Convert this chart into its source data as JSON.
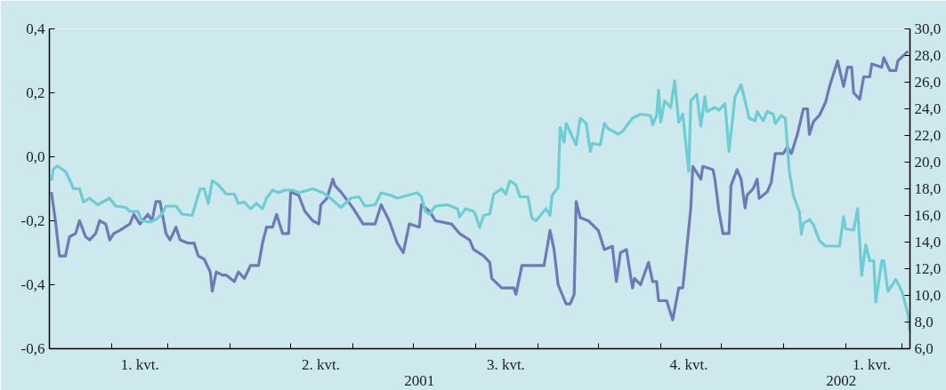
{
  "chart_data": {
    "type": "line",
    "xlim": [
      "2001-01-01",
      "2002-03-05"
    ],
    "xticks": [
      {
        "value": "2001-02-01",
        "label": null
      },
      {
        "value": "2001-03-01",
        "label": null
      },
      {
        "value": "2001-04-01",
        "label": null
      },
      {
        "value": "2001-05-01",
        "label": null
      },
      {
        "value": "2001-06-01",
        "label": null
      },
      {
        "value": "2001-07-01",
        "label": null
      },
      {
        "value": "2001-08-01",
        "label": null
      },
      {
        "value": "2001-09-01",
        "label": null
      },
      {
        "value": "2001-10-01",
        "label": null
      },
      {
        "value": "2001-11-01",
        "label": null
      },
      {
        "value": "2001-12-01",
        "label": null
      },
      {
        "value": "2002-01-01",
        "label": null
      },
      {
        "value": "2002-02-01",
        "label": null
      },
      {
        "value": "2002-03-01",
        "label": null
      },
      {
        "value": "2001-02-15",
        "label": "1. kvt."
      },
      {
        "value": "2001-05-16",
        "label": "2. kvt."
      },
      {
        "value": "2001-08-16",
        "label": "3. kvt."
      },
      {
        "value": "2001-11-15",
        "label": "4. kvt."
      },
      {
        "value": "2002-02-14",
        "label": "1. kvt."
      }
    ],
    "ylim": [
      -0.6,
      0.4
    ],
    "yticks": [
      {
        "value": -0.6,
        "label": "-0,6"
      },
      {
        "value": -0.4,
        "label": "-0,4"
      },
      {
        "value": -0.2,
        "label": "-0,2"
      },
      {
        "value": 0.0,
        "label": "0,0"
      },
      {
        "value": 0.2,
        "label": "0,2"
      },
      {
        "value": 0.4,
        "label": "0,4"
      }
    ],
    "y2lim": [
      6,
      30
    ],
    "y2ticks": [
      {
        "value": 6,
        "label": "6,0"
      },
      {
        "value": 8,
        "label": "8,0"
      },
      {
        "value": 10,
        "label": "10,0"
      },
      {
        "value": 12,
        "label": "12,0"
      },
      {
        "value": 14,
        "label": "14,0"
      },
      {
        "value": 16,
        "label": "16,0"
      },
      {
        "value": 18,
        "label": "18,0"
      },
      {
        "value": 20,
        "label": "20,0"
      },
      {
        "value": 22,
        "label": "22,0"
      },
      {
        "value": 24,
        "label": "24,0"
      },
      {
        "value": 26,
        "label": "26,0"
      },
      {
        "value": 28,
        "label": "28,0"
      },
      {
        "value": 30,
        "label": "30,0"
      }
    ],
    "annotations": [
      "2001",
      "2002"
    ],
    "series": [
      {
        "color": "#6f79b9",
        "x": [
          "2001-01-02",
          "2001-01-04",
          "2001-01-06",
          "2001-01-09",
          "2001-01-11",
          "2001-01-14",
          "2001-01-16",
          "2001-01-19",
          "2001-01-21",
          "2001-01-24",
          "2001-01-26",
          "2001-01-29",
          "2001-01-31",
          "2001-02-02",
          "2001-02-05",
          "2001-02-10",
          "2001-02-12",
          "2001-02-15",
          "2001-02-19",
          "2001-02-21",
          "2001-02-23",
          "2001-02-25",
          "2001-02-28",
          "2001-03-02",
          "2001-03-05",
          "2001-03-07",
          "2001-03-11",
          "2001-03-14",
          "2001-03-16",
          "2001-03-19",
          "2001-03-22",
          "2001-03-23",
          "2001-03-25",
          "2001-03-28",
          "2001-03-30",
          "2001-04-03",
          "2001-04-05",
          "2001-04-08",
          "2001-04-11",
          "2001-04-15",
          "2001-04-17",
          "2001-04-19",
          "2001-04-22",
          "2001-04-24",
          "2001-04-27",
          "2001-04-30",
          "2001-05-01",
          "2001-05-05",
          "2001-05-08",
          "2001-05-12",
          "2001-05-15",
          "2001-05-16",
          "2001-05-19",
          "2001-05-22",
          "2001-05-23",
          "2001-05-26",
          "2001-06-01",
          "2001-06-06",
          "2001-06-12",
          "2001-06-15",
          "2001-06-19",
          "2001-06-23",
          "2001-06-26",
          "2001-06-29",
          "2001-07-04",
          "2001-07-05",
          "2001-07-09",
          "2001-07-12",
          "2001-07-20",
          "2001-07-24",
          "2001-07-29",
          "2001-07-31",
          "2001-08-05",
          "2001-08-08",
          "2001-08-09",
          "2001-08-14",
          "2001-08-20",
          "2001-08-21",
          "2001-08-24",
          "2001-08-29",
          "2001-09-04",
          "2001-09-07",
          "2001-09-09",
          "2001-09-11",
          "2001-09-15",
          "2001-09-17",
          "2001-09-19",
          "2001-09-20",
          "2001-09-22",
          "2001-09-26",
          "2001-10-01",
          "2001-10-04",
          "2001-10-08",
          "2001-10-10",
          "2001-10-12",
          "2001-10-15",
          "2001-10-18",
          "2001-10-19",
          "2001-10-22",
          "2001-10-26",
          "2001-10-28",
          "2001-10-30",
          "2001-10-31",
          "2001-11-04",
          "2001-11-07",
          "2001-11-10",
          "2001-11-12",
          "2001-11-13",
          "2001-11-16",
          "2001-11-17",
          "2001-11-21",
          "2001-11-22",
          "2001-11-27",
          "2001-11-28",
          "2001-11-30",
          "2001-12-02",
          "2001-12-05",
          "2001-12-06",
          "2001-12-09",
          "2001-12-11",
          "2001-12-13",
          "2001-12-14",
          "2001-12-17",
          "2001-12-19",
          "2001-12-20",
          "2001-12-24",
          "2001-12-26",
          "2001-12-28",
          "2002-01-01",
          "2002-01-03",
          "2002-01-05",
          "2002-01-08",
          "2002-01-11",
          "2002-01-13",
          "2002-01-14",
          "2002-01-16",
          "2002-01-19",
          "2002-01-22",
          "2002-01-24",
          "2002-01-26",
          "2002-01-28",
          "2002-01-31",
          "2002-02-02",
          "2002-02-04",
          "2002-02-05",
          "2002-02-08",
          "2002-02-10",
          "2002-02-13",
          "2002-02-14",
          "2002-02-19",
          "2002-02-20",
          "2002-02-23",
          "2002-02-26",
          "2002-02-27",
          "2002-03-04"
        ],
        "values": [
          -0.11,
          -0.2,
          -0.31,
          -0.31,
          -0.25,
          -0.24,
          -0.2,
          -0.25,
          -0.26,
          -0.24,
          -0.2,
          -0.21,
          -0.26,
          -0.24,
          -0.23,
          -0.21,
          -0.18,
          -0.21,
          -0.18,
          -0.2,
          -0.14,
          -0.14,
          -0.24,
          -0.26,
          -0.22,
          -0.26,
          -0.27,
          -0.27,
          -0.31,
          -0.32,
          -0.36,
          -0.42,
          -0.36,
          -0.37,
          -0.37,
          -0.39,
          -0.36,
          -0.38,
          -0.34,
          -0.34,
          -0.27,
          -0.22,
          -0.22,
          -0.18,
          -0.24,
          -0.24,
          -0.11,
          -0.12,
          -0.17,
          -0.2,
          -0.21,
          -0.15,
          -0.13,
          -0.07,
          -0.09,
          -0.11,
          -0.16,
          -0.21,
          -0.21,
          -0.15,
          -0.2,
          -0.27,
          -0.3,
          -0.21,
          -0.22,
          -0.15,
          -0.17,
          -0.2,
          -0.21,
          -0.24,
          -0.26,
          -0.29,
          -0.31,
          -0.33,
          -0.38,
          -0.41,
          -0.41,
          -0.43,
          -0.34,
          -0.34,
          -0.34,
          -0.23,
          -0.29,
          -0.4,
          -0.46,
          -0.46,
          -0.43,
          -0.14,
          -0.19,
          -0.2,
          -0.23,
          -0.29,
          -0.28,
          -0.39,
          -0.3,
          -0.29,
          -0.41,
          -0.38,
          -0.4,
          -0.33,
          -0.39,
          -0.39,
          -0.45,
          -0.45,
          -0.51,
          -0.41,
          -0.41,
          -0.35,
          -0.16,
          -0.03,
          -0.07,
          -0.03,
          -0.04,
          -0.07,
          -0.17,
          -0.24,
          -0.24,
          -0.09,
          -0.04,
          -0.07,
          -0.16,
          -0.12,
          -0.1,
          -0.07,
          -0.13,
          -0.11,
          -0.08,
          0.01,
          0.01,
          0.03,
          0.01,
          0.07,
          0.15,
          0.15,
          0.07,
          0.11,
          0.13,
          0.17,
          0.22,
          0.26,
          0.3,
          0.22,
          0.28,
          0.28,
          0.2,
          0.18,
          0.25,
          0.25,
          0.29,
          0.28,
          0.31,
          0.27,
          0.27,
          0.3,
          0.33
        ]
      },
      {
        "color": "#6ccdd4",
        "axis": "y2",
        "x": [
          "2001-01-02",
          "2001-01-03",
          "2001-01-05",
          "2001-01-09",
          "2001-01-11",
          "2001-01-13",
          "2001-01-16",
          "2001-01-18",
          "2001-01-21",
          "2001-01-25",
          "2001-01-31",
          "2001-02-03",
          "2001-02-08",
          "2001-02-10",
          "2001-02-14",
          "2001-02-16",
          "2001-02-20",
          "2001-02-23",
          "2001-02-26",
          "2001-02-28",
          "2001-03-05",
          "2001-03-08",
          "2001-03-13",
          "2001-03-15",
          "2001-03-17",
          "2001-03-19",
          "2001-03-21",
          "2001-03-23",
          "2001-03-26",
          "2001-03-30",
          "2001-04-03",
          "2001-04-05",
          "2001-04-08",
          "2001-04-11",
          "2001-04-14",
          "2001-04-17",
          "2001-04-19",
          "2001-04-22",
          "2001-04-25",
          "2001-04-28",
          "2001-05-02",
          "2001-05-05",
          "2001-05-12",
          "2001-05-17",
          "2001-05-20",
          "2001-05-26",
          "2001-05-31",
          "2001-06-04",
          "2001-06-07",
          "2001-06-12",
          "2001-06-15",
          "2001-06-20",
          "2001-06-23",
          "2001-06-28",
          "2001-07-03",
          "2001-07-05",
          "2001-07-07",
          "2001-07-09",
          "2001-07-12",
          "2001-07-18",
          "2001-07-23",
          "2001-07-24",
          "2001-07-27",
          "2001-07-31",
          "2001-08-01",
          "2001-08-03",
          "2001-08-05",
          "2001-08-08",
          "2001-08-10",
          "2001-08-14",
          "2001-08-16",
          "2001-08-18",
          "2001-08-21",
          "2001-08-23",
          "2001-08-27",
          "2001-08-29",
          "2001-08-31",
          "2001-09-05",
          "2001-09-07",
          "2001-09-08",
          "2001-09-11",
          "2001-09-12",
          "2001-09-14",
          "2001-09-15",
          "2001-09-20",
          "2001-09-22",
          "2001-09-25",
          "2001-09-27",
          "2001-09-28",
          "2001-10-02",
          "2001-10-04",
          "2001-10-06",
          "2001-10-11",
          "2001-10-13",
          "2001-10-18",
          "2001-10-22",
          "2001-10-27",
          "2001-10-28",
          "2001-10-30",
          "2001-10-31",
          "2001-11-01",
          "2001-11-03",
          "2001-11-06",
          "2001-11-08",
          "2001-11-10",
          "2001-11-12",
          "2001-11-15",
          "2001-11-16",
          "2001-11-19",
          "2001-11-21",
          "2001-11-23",
          "2001-11-24",
          "2001-11-28",
          "2001-11-30",
          "2001-12-03",
          "2001-12-05",
          "2001-12-08",
          "2001-12-11",
          "2001-12-13",
          "2001-12-15",
          "2001-12-18",
          "2001-12-19",
          "2001-12-22",
          "2001-12-24",
          "2001-12-27",
          "2001-12-28",
          "2001-12-31",
          "2002-01-02",
          "2002-01-04",
          "2002-01-06",
          "2002-01-09",
          "2002-01-10",
          "2002-01-11",
          "2002-01-14",
          "2002-01-16",
          "2002-01-19",
          "2002-01-22",
          "2002-01-29",
          "2002-01-31",
          "2002-02-01",
          "2002-02-05",
          "2002-02-07",
          "2002-02-09",
          "2002-02-11",
          "2002-02-13",
          "2002-02-15",
          "2002-02-16",
          "2002-02-19",
          "2002-02-20",
          "2002-02-22",
          "2002-02-26",
          "2002-03-01",
          "2002-03-04",
          "2002-03-05"
        ],
        "values": [
          18.6,
          19.5,
          19.7,
          19.3,
          18.7,
          18.0,
          18.0,
          17.0,
          17.3,
          16.8,
          17.3,
          16.7,
          16.6,
          16.3,
          16.3,
          15.6,
          15.5,
          15.7,
          16.1,
          16.7,
          16.7,
          16.1,
          16.0,
          17.0,
          18.0,
          18.0,
          16.9,
          18.6,
          18.3,
          17.6,
          17.6,
          16.9,
          17.0,
          16.5,
          16.9,
          16.5,
          17.3,
          17.9,
          17.7,
          17.9,
          17.9,
          17.7,
          18.0,
          17.7,
          17.4,
          16.6,
          17.3,
          17.4,
          16.7,
          16.8,
          17.7,
          17.5,
          17.3,
          17.5,
          17.7,
          17.4,
          16.3,
          16.1,
          16.7,
          16.8,
          16.5,
          15.9,
          16.5,
          16.3,
          16.0,
          15.1,
          16.0,
          16.1,
          17.6,
          18.0,
          17.6,
          18.6,
          18.3,
          17.4,
          17.4,
          15.8,
          15.6,
          16.5,
          16.0,
          17.5,
          18.1,
          22.6,
          21.5,
          22.9,
          21.3,
          23.3,
          22.9,
          20.8,
          21.4,
          21.3,
          22.9,
          22.5,
          22.1,
          22.3,
          23.3,
          23.6,
          23.5,
          22.8,
          23.5,
          25.4,
          23.0,
          24.6,
          24.1,
          26.1,
          23.0,
          23.6,
          19.3,
          24.6,
          25.1,
          22.7,
          24.9,
          23.8,
          24.1,
          23.9,
          24.4,
          20.8,
          24.9,
          25.8,
          24.6,
          23.3,
          23.1,
          23.8,
          23.1,
          23.8,
          23.6,
          22.9,
          23.5,
          23.3,
          19.3,
          17.5,
          16.3,
          14.6,
          15.4,
          15.7,
          15.3,
          14.1,
          13.7,
          13.7,
          15.9,
          15.0,
          14.9,
          16.5,
          11.5,
          13.8,
          12.6,
          12.6,
          9.5,
          12.6,
          12.6,
          10.3,
          11.2,
          10.3,
          8.6,
          7.3
        ]
      }
    ]
  }
}
